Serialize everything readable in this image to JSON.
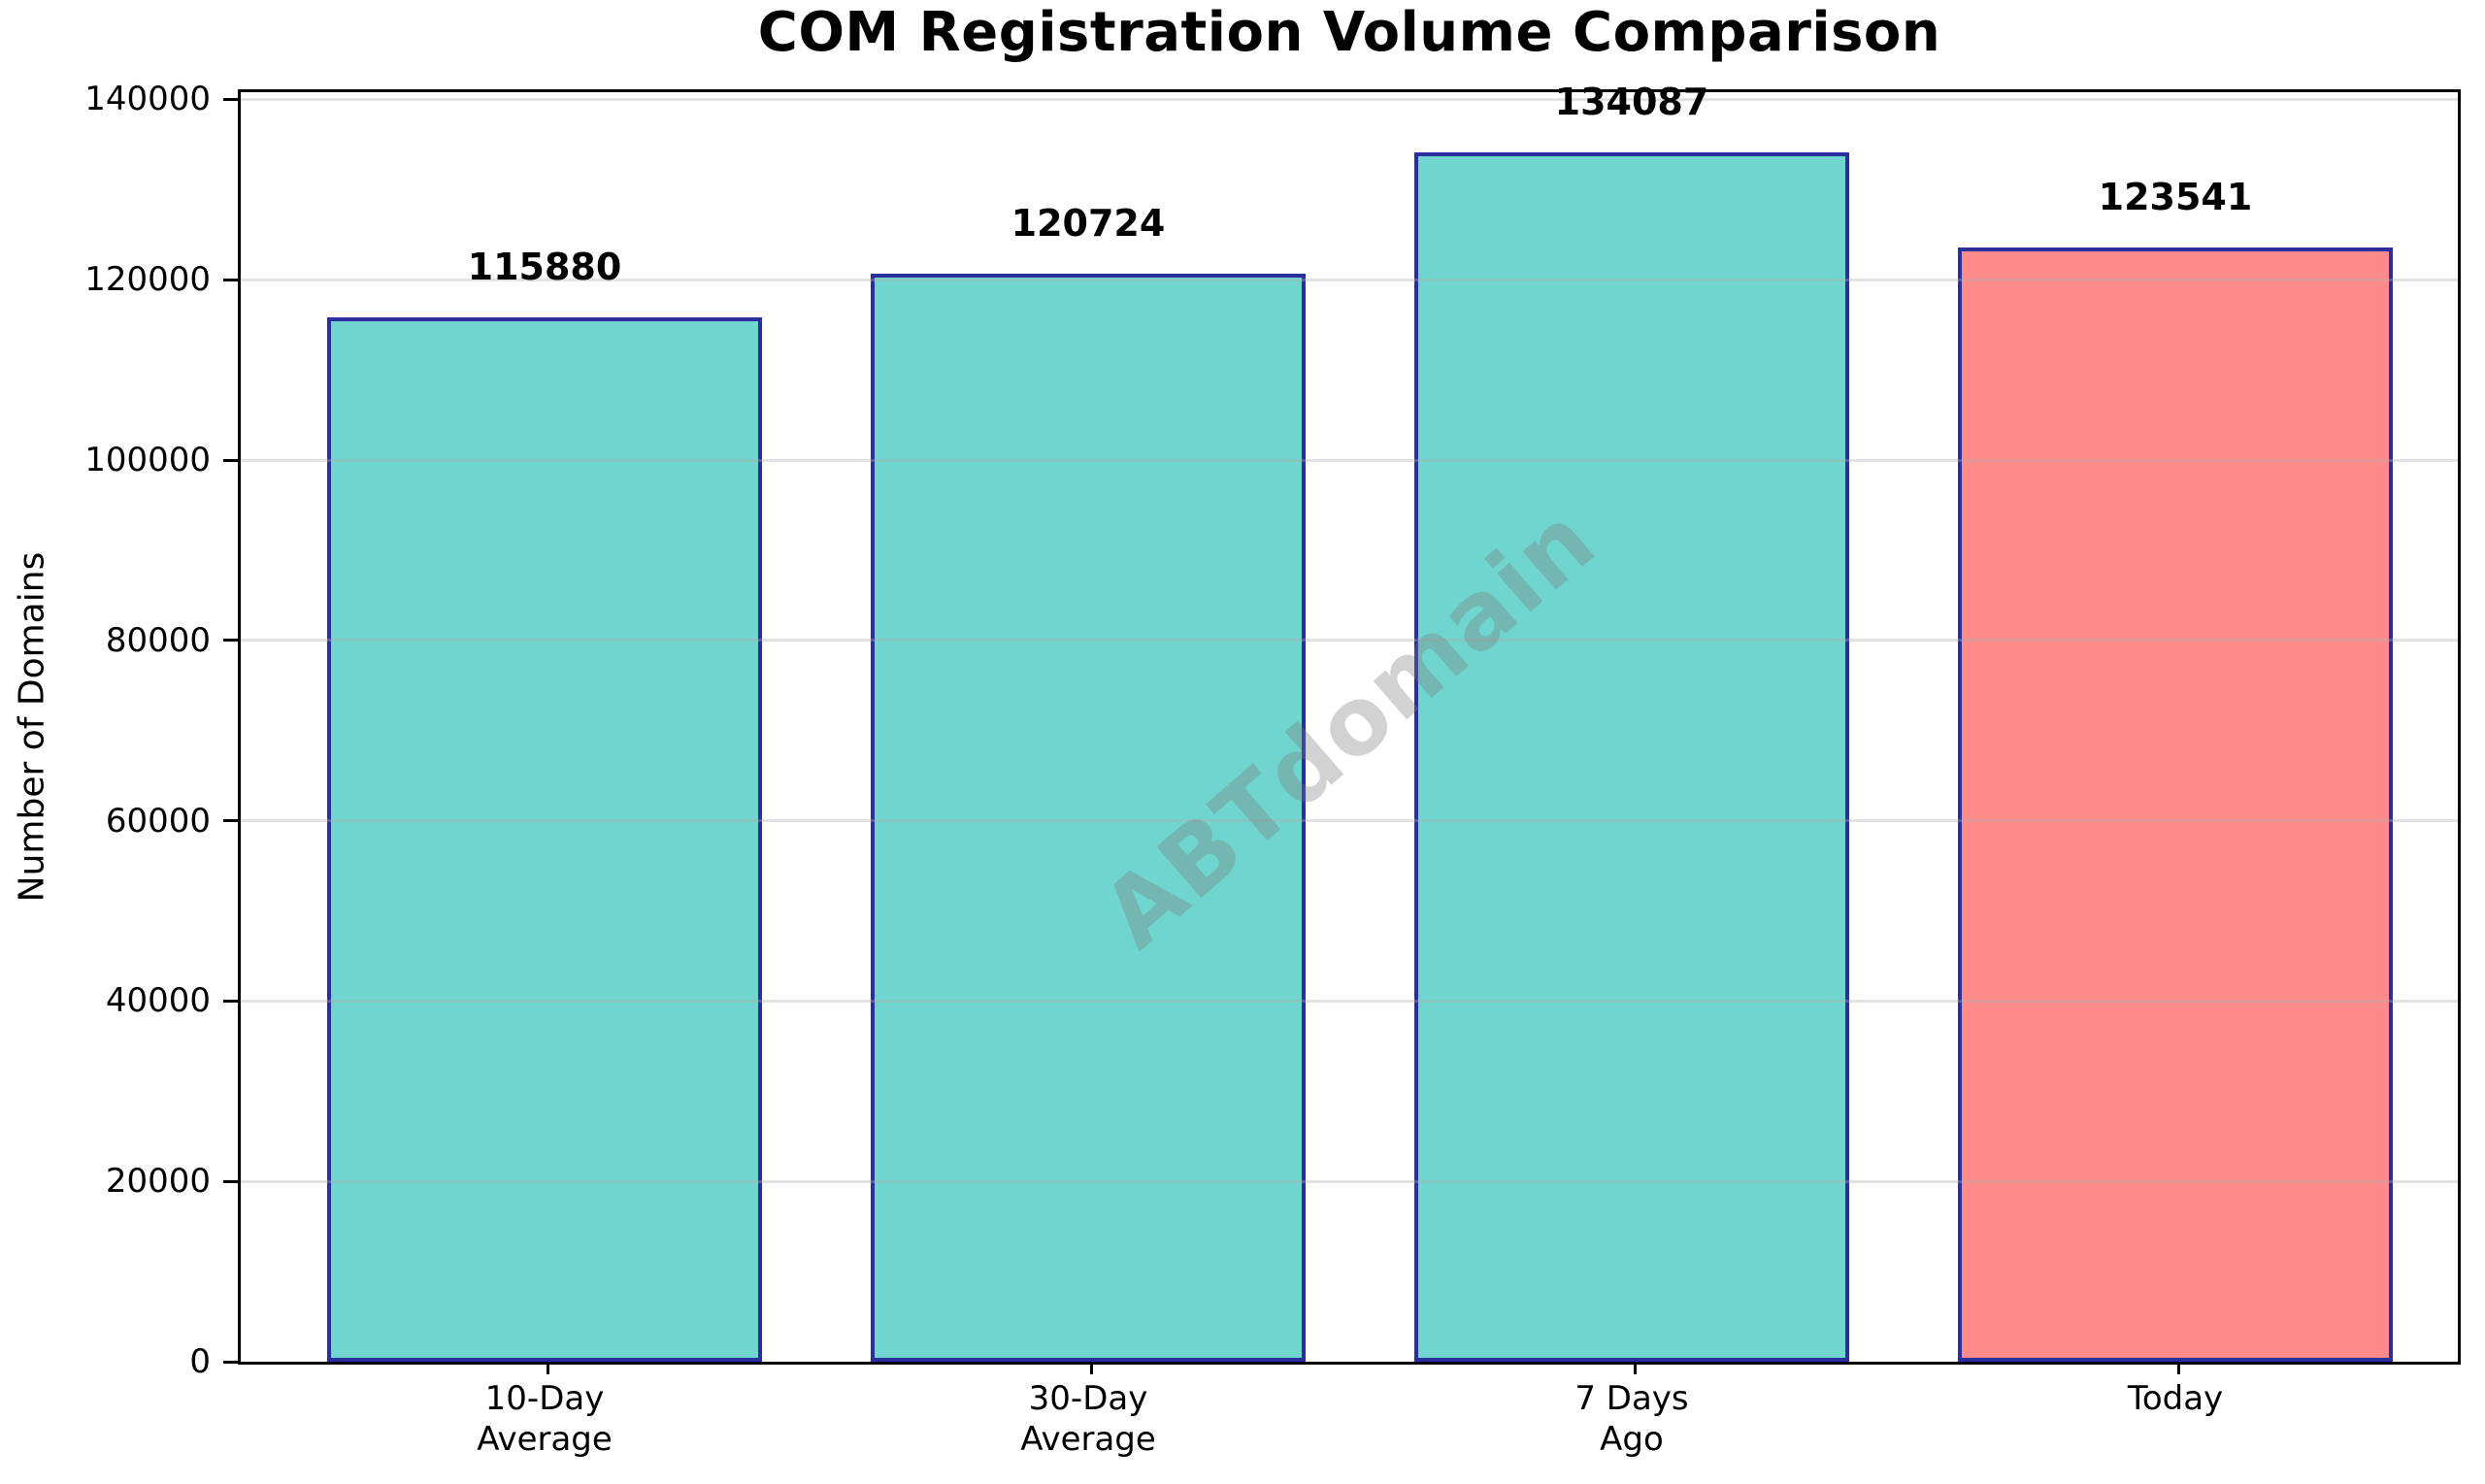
{
  "title": "COM Registration Volume Comparison",
  "chart_data": {
    "type": "bar",
    "title": "COM Registration Volume Comparison",
    "categories": [
      "10-Day\nAverage",
      "30-Day\nAverage",
      "7 Days\nAgo",
      "Today"
    ],
    "values": [
      115880,
      120724,
      134087,
      123541
    ],
    "value_labels": [
      "115880",
      "120724",
      "134087",
      "123541"
    ],
    "bar_colors": [
      "#70D5CE",
      "#70D5CE",
      "#70D5CE",
      "#FF8A8A"
    ],
    "bar_edge_color": "#2A2F9D",
    "xlabel": "",
    "ylabel": "Number of Domains",
    "ylim": [
      0,
      140800
    ],
    "yticks": [
      0,
      20000,
      40000,
      60000,
      80000,
      100000,
      120000,
      140000
    ],
    "grid": "horizontal gridlines at y ticks, light gray, drawn above bars",
    "legend": "none",
    "watermark": {
      "text": "ABTdomain",
      "color": "#7A7A7A",
      "opacity": 0.33,
      "rotation_deg": 41
    }
  }
}
